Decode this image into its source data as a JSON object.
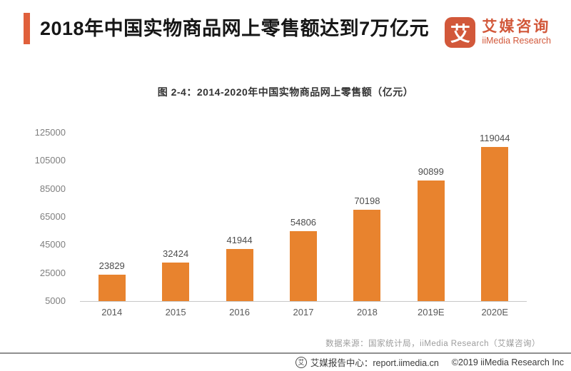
{
  "header": {
    "title": "2018年中国实物商品网上零售额达到7万亿元",
    "logo": {
      "mark": "艾",
      "name_cn": "艾媒咨询",
      "name_en": "iiMedia Research"
    }
  },
  "chart_data": {
    "type": "bar",
    "title": "图 2-4：2014-2020年中国实物商品网上零售额（亿元）",
    "categories": [
      "2014",
      "2015",
      "2016",
      "2017",
      "2018",
      "2019E",
      "2020E"
    ],
    "values": [
      23829,
      32424,
      41944,
      54806,
      70198,
      90899,
      119044
    ],
    "y_ticks": [
      5000,
      25000,
      45000,
      65000,
      85000,
      105000,
      125000
    ],
    "ylim": [
      5000,
      125000
    ],
    "xlabel": "",
    "ylabel": "",
    "grid": false,
    "legend": false,
    "bar_color": "#e8832e"
  },
  "source_note": "数据来源：国家统计局，iiMedia Research（艾媒咨询）",
  "footer": {
    "badge_glyph": "艾",
    "report_center": "艾媒报告中心：report.iimedia.cn",
    "copyright": "©2019  iiMedia Research Inc"
  },
  "colors": {
    "brand": "#d2583a",
    "accent": "#e0603c",
    "bar": "#e8832e"
  }
}
